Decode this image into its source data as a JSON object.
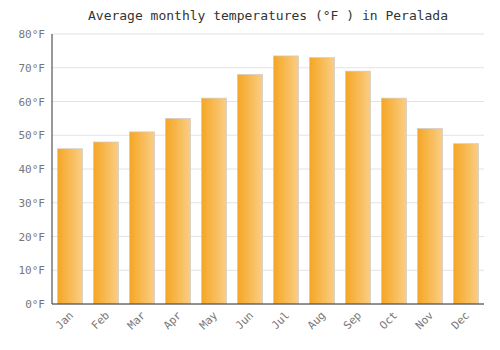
{
  "chart_data": {
    "type": "bar",
    "title": "Average monthly temperatures (°F ) in Peralada",
    "categories": [
      "Jan",
      "Feb",
      "Mar",
      "Apr",
      "May",
      "Jun",
      "Jul",
      "Aug",
      "Sep",
      "Oct",
      "Nov",
      "Dec"
    ],
    "values": [
      46,
      48,
      51,
      55,
      61,
      68,
      73.5,
      73,
      69,
      61,
      52,
      47.5
    ],
    "color": "#F5A623",
    "ylim": [
      0,
      80
    ],
    "yticks": [
      {
        "value": 0,
        "label": "0°F"
      },
      {
        "value": 10,
        "label": "10°F"
      },
      {
        "value": 20,
        "label": "20°F"
      },
      {
        "value": 30,
        "label": "30°F"
      },
      {
        "value": 40,
        "label": "40°F"
      },
      {
        "value": 50,
        "label": "50°F"
      },
      {
        "value": 60,
        "label": "60°F"
      },
      {
        "value": 70,
        "label": "70°F"
      },
      {
        "value": 80,
        "label": "80°F"
      }
    ],
    "grid": true
  }
}
